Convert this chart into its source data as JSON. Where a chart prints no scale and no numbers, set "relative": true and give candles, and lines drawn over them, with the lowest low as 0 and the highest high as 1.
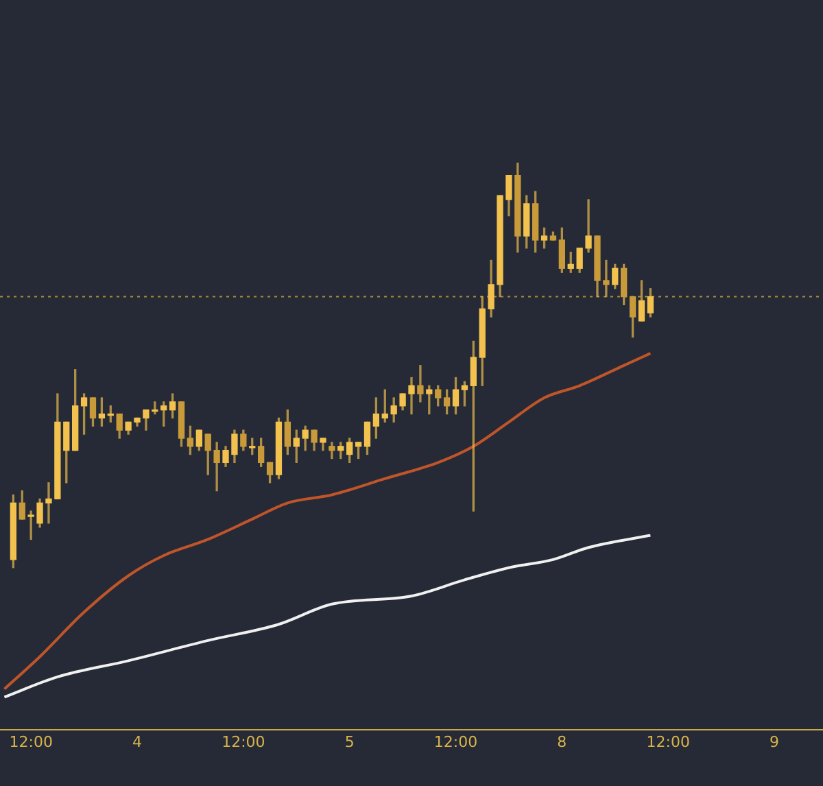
{
  "chart_data": {
    "type": "candlestick",
    "relative": true,
    "categories": [
      null,
      null,
      null,
      "12:00",
      null,
      null,
      null,
      null,
      null,
      null,
      null,
      null,
      null,
      null,
      null,
      "4",
      null,
      null,
      null,
      null,
      null,
      null,
      null,
      null,
      null,
      null,
      null,
      "12:00",
      null,
      null,
      null,
      null,
      null,
      null,
      null,
      null,
      null,
      null,
      null,
      "5",
      null,
      null,
      null,
      null,
      null,
      null,
      null,
      null,
      null,
      null,
      null,
      "12:00",
      null,
      null,
      null,
      null,
      null,
      null,
      null,
      null,
      null,
      null,
      null,
      "8",
      null,
      null,
      null,
      null,
      null,
      null,
      null,
      null,
      null,
      null,
      null,
      "12:00",
      null,
      null,
      null,
      null,
      null,
      null,
      null,
      null,
      null,
      null,
      null,
      "9",
      null,
      null,
      null,
      null,
      null
    ],
    "ohlc": [
      null,
      [
        0.02,
        0.18,
        0,
        0.16
      ],
      [
        0.16,
        0.19,
        0.12,
        0.12
      ],
      [
        0.13,
        0.14,
        0.07,
        0.13
      ],
      [
        0.11,
        0.17,
        0.1,
        0.16
      ],
      [
        0.16,
        0.21,
        0.11,
        0.17
      ],
      [
        0.17,
        0.43,
        0.17,
        0.36
      ],
      [
        0.29,
        0.36,
        0.21,
        0.36
      ],
      [
        0.29,
        0.49,
        0.29,
        0.4
      ],
      [
        0.4,
        0.43,
        0.33,
        0.42
      ],
      [
        0.42,
        0.42,
        0.35,
        0.37
      ],
      [
        0.37,
        0.42,
        0.35,
        0.38
      ],
      [
        0.38,
        0.4,
        0.36,
        0.38
      ],
      [
        0.38,
        0.38,
        0.32,
        0.34
      ],
      [
        0.34,
        0.36,
        0.33,
        0.36
      ],
      [
        0.36,
        0.37,
        0.35,
        0.37
      ],
      [
        0.37,
        0.39,
        0.34,
        0.39
      ],
      [
        0.39,
        0.41,
        0.38,
        0.39
      ],
      [
        0.39,
        0.41,
        0.35,
        0.4
      ],
      [
        0.39,
        0.43,
        0.37,
        0.41
      ],
      [
        0.41,
        0.41,
        0.3,
        0.32
      ],
      [
        0.32,
        0.35,
        0.28,
        0.3
      ],
      [
        0.3,
        0.34,
        0.29,
        0.34
      ],
      [
        0.33,
        0.33,
        0.23,
        0.29
      ],
      [
        0.29,
        0.31,
        0.19,
        0.26
      ],
      [
        0.26,
        0.3,
        0.25,
        0.29
      ],
      [
        0.28,
        0.34,
        0.26,
        0.33
      ],
      [
        0.33,
        0.34,
        0.29,
        0.3
      ],
      [
        0.3,
        0.32,
        0.28,
        0.3
      ],
      [
        0.3,
        0.32,
        0.25,
        0.26
      ],
      [
        0.26,
        0.26,
        0.21,
        0.23
      ],
      [
        0.23,
        0.37,
        0.22,
        0.36
      ],
      [
        0.36,
        0.39,
        0.28,
        0.3
      ],
      [
        0.3,
        0.34,
        0.26,
        0.32
      ],
      [
        0.32,
        0.35,
        0.29,
        0.34
      ],
      [
        0.34,
        0.34,
        0.29,
        0.31
      ],
      [
        0.31,
        0.32,
        0.29,
        0.32
      ],
      [
        0.3,
        0.31,
        0.27,
        0.29
      ],
      [
        0.29,
        0.31,
        0.27,
        0.3
      ],
      [
        0.28,
        0.32,
        0.26,
        0.31
      ],
      [
        0.3,
        0.31,
        0.27,
        0.31
      ],
      [
        0.3,
        0.36,
        0.28,
        0.36
      ],
      [
        0.35,
        0.42,
        0.32,
        0.38
      ],
      [
        0.37,
        0.44,
        0.36,
        0.38
      ],
      [
        0.38,
        0.42,
        0.36,
        0.4
      ],
      [
        0.4,
        0.43,
        0.39,
        0.43
      ],
      [
        0.43,
        0.47,
        0.38,
        0.45
      ],
      [
        0.45,
        0.5,
        0.41,
        0.43
      ],
      [
        0.43,
        0.45,
        0.38,
        0.44
      ],
      [
        0.44,
        0.45,
        0.4,
        0.42
      ],
      [
        0.42,
        0.44,
        0.38,
        0.4
      ],
      [
        0.4,
        0.47,
        0.38,
        0.44
      ],
      [
        0.44,
        0.46,
        0.4,
        0.45
      ],
      [
        0.45,
        0.56,
        0.14,
        0.52
      ],
      [
        0.52,
        0.67,
        0.45,
        0.64
      ],
      [
        0.64,
        0.76,
        0.62,
        0.7
      ],
      [
        0.7,
        0.92,
        0.67,
        0.92
      ],
      [
        0.91,
        0.97,
        0.87,
        0.97
      ],
      [
        0.97,
        1,
        0.78,
        0.82
      ],
      [
        0.82,
        0.92,
        0.79,
        0.9
      ],
      [
        0.9,
        0.93,
        0.78,
        0.81
      ],
      [
        0.81,
        0.84,
        0.79,
        0.82
      ],
      [
        0.82,
        0.83,
        0.81,
        0.81
      ],
      [
        0.81,
        0.84,
        0.73,
        0.74
      ],
      [
        0.74,
        0.78,
        0.73,
        0.75
      ],
      [
        0.74,
        0.79,
        0.73,
        0.79
      ],
      [
        0.79,
        0.91,
        0.78,
        0.82
      ],
      [
        0.82,
        0.82,
        0.67,
        0.71
      ],
      [
        0.71,
        0.76,
        0.67,
        0.7
      ],
      [
        0.7,
        0.75,
        0.69,
        0.74
      ],
      [
        0.74,
        0.75,
        0.65,
        0.67
      ],
      [
        0.67,
        0.67,
        0.57,
        0.62
      ],
      [
        0.61,
        0.71,
        0.61,
        0.66
      ],
      [
        0.63,
        0.69,
        0.62,
        0.67
      ],
      null,
      null,
      null,
      null,
      null,
      null,
      null,
      null,
      null,
      null,
      null,
      null,
      null,
      null,
      null,
      null,
      null,
      null,
      null
    ],
    "color": "#f2c14e",
    "colors": [
      null,
      "#f2c14e",
      "#c99a3a",
      "#f2c14e",
      "#f2c14e",
      "#f2c14e",
      "#f2c14e",
      "#f2c14e",
      "#f2c14e",
      "#f2c14e",
      "#c99a3a",
      "#f2c14e",
      "#f2c14e",
      "#c99a3a",
      "#f2c14e",
      "#f2c14e",
      "#f2c14e",
      "#f2c14e",
      "#f2c14e",
      "#f2c14e",
      "#c99a3a",
      "#c99a3a",
      "#f2c14e",
      "#c99a3a",
      "#c99a3a",
      "#f2c14e",
      "#f2c14e",
      "#c99a3a",
      "#f2c14e",
      "#c99a3a",
      "#c99a3a",
      "#f2c14e",
      "#c99a3a",
      "#f2c14e",
      "#f2c14e",
      "#c99a3a",
      "#f2c14e",
      "#c99a3a",
      "#f2c14e",
      "#f2c14e",
      "#f2c14e",
      "#f2c14e",
      "#f2c14e",
      "#f2c14e",
      "#f2c14e",
      "#f2c14e",
      "#f2c14e",
      "#c99a3a",
      "#f2c14e",
      "#c99a3a",
      "#c99a3a",
      "#f2c14e",
      "#f2c14e",
      "#f2c14e",
      "#f2c14e",
      "#f2c14e",
      "#f2c14e",
      "#f2c14e",
      "#c99a3a",
      "#f2c14e",
      "#c99a3a",
      "#f2c14e",
      "#c99a3a",
      "#c99a3a",
      "#f2c14e",
      "#f2c14e",
      "#f2c14e",
      "#c99a3a",
      "#c99a3a",
      "#f2c14e",
      "#c99a3a",
      "#c99a3a",
      "#f2c14e",
      "#f2c14e",
      null,
      null,
      null,
      null,
      null,
      null,
      null,
      null,
      null,
      null,
      null,
      null,
      null,
      null,
      null,
      null,
      null,
      null,
      null
    ],
    "series": [
      {
        "type": "line",
        "color": "#c0552a",
        "values": [
          -0.3,
          null,
          null,
          null,
          -0.22,
          null,
          null,
          null,
          null,
          -0.11,
          null,
          null,
          null,
          null,
          -0.02,
          null,
          null,
          null,
          0.03,
          null,
          null,
          null,
          null,
          0.07,
          null,
          null,
          null,
          null,
          0.12,
          null,
          null,
          null,
          0.16,
          null,
          null,
          null,
          null,
          0.18,
          null,
          null,
          null,
          null,
          null,
          0.22,
          null,
          null,
          null,
          null,
          null,
          0.26,
          null,
          null,
          null,
          0.3,
          null,
          null,
          null,
          0.36,
          null,
          null,
          null,
          0.42,
          null,
          null,
          null,
          0.45,
          null,
          null,
          null,
          null,
          0.5,
          null,
          null,
          0.53,
          null,
          null,
          null,
          null,
          null,
          null,
          null,
          null,
          null,
          null,
          null,
          null,
          null,
          null,
          null,
          null,
          null,
          null,
          null
        ]
      },
      {
        "type": "line",
        "color": "#f0f0f0",
        "values": [
          -0.32,
          null,
          null,
          null,
          null,
          null,
          -0.27,
          null,
          null,
          null,
          null,
          null,
          null,
          null,
          -0.23,
          null,
          null,
          null,
          null,
          null,
          null,
          null,
          null,
          -0.18,
          null,
          null,
          null,
          null,
          null,
          null,
          null,
          -0.14,
          null,
          null,
          null,
          null,
          null,
          -0.09,
          null,
          null,
          null,
          null,
          null,
          null,
          null,
          null,
          -0.07,
          null,
          null,
          null,
          null,
          null,
          -0.03,
          null,
          null,
          null,
          null,
          0,
          null,
          null,
          null,
          null,
          0.02,
          null,
          null,
          null,
          0.05,
          null,
          null,
          null,
          null,
          null,
          null,
          0.08,
          null,
          null,
          null,
          null,
          null,
          null,
          null,
          null,
          null,
          null,
          null,
          null,
          null,
          null,
          null,
          null,
          null,
          null,
          null
        ]
      }
    ],
    "ref_lines": [
      {
        "axis": "y",
        "value": 0.67,
        "color": "#b08a3a",
        "line_style": "dotted"
      }
    ],
    "legend": false
  }
}
